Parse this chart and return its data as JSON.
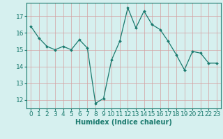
{
  "x": [
    0,
    1,
    2,
    3,
    4,
    5,
    6,
    7,
    8,
    9,
    10,
    11,
    12,
    13,
    14,
    15,
    16,
    17,
    18,
    19,
    20,
    21,
    22,
    23
  ],
  "y": [
    16.4,
    15.7,
    15.2,
    15.0,
    15.2,
    15.0,
    15.6,
    15.1,
    11.8,
    12.1,
    14.4,
    15.5,
    17.5,
    16.3,
    17.3,
    16.5,
    16.2,
    15.5,
    14.7,
    13.8,
    14.9,
    14.8,
    14.2,
    14.2
  ],
  "line_color": "#1a7a6e",
  "marker": "D",
  "marker_size": 2.0,
  "bg_color": "#d6f0ef",
  "grid_color": "#c8e0de",
  "xlabel": "Humidex (Indice chaleur)",
  "xlim": [
    -0.5,
    23.5
  ],
  "ylim": [
    11.5,
    17.8
  ],
  "yticks": [
    12,
    13,
    14,
    15,
    16,
    17
  ],
  "xticks": [
    0,
    1,
    2,
    3,
    4,
    5,
    6,
    7,
    8,
    9,
    10,
    11,
    12,
    13,
    14,
    15,
    16,
    17,
    18,
    19,
    20,
    21,
    22,
    23
  ],
  "label_fontsize": 7,
  "tick_fontsize": 6.5,
  "spine_color": "#1a7a6e"
}
